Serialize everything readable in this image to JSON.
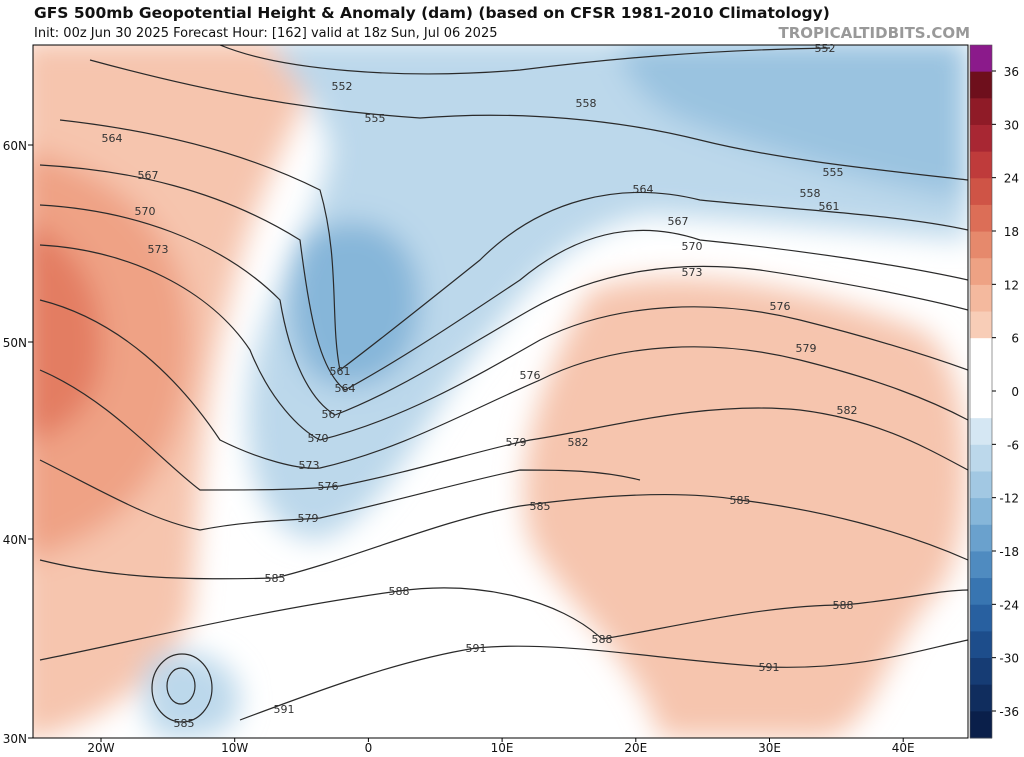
{
  "header": {
    "title": "GFS 500mb Geopotential Height & Anomaly (dam) (based on CFSR 1981-2010 Climatology)",
    "subtitle": "Init: 00z Jun 30 2025   Forecast Hour: [162]   valid at 18z Sun, Jul 06 2025",
    "site": "TROPICALTIDBITS.COM"
  },
  "map": {
    "lat_labels": [
      "60N",
      "50N",
      "40N",
      "30N"
    ],
    "lon_labels": [
      "20W",
      "10W",
      "0",
      "10E",
      "20E",
      "30E",
      "40E"
    ],
    "contour_labels": [
      "552",
      "555",
      "558",
      "564",
      "567",
      "570",
      "573",
      "564",
      "567",
      "570",
      "573",
      "555",
      "558",
      "561",
      "576",
      "579",
      "582",
      "561",
      "564",
      "567",
      "570",
      "573",
      "576",
      "579",
      "576",
      "579",
      "582",
      "585",
      "585",
      "585",
      "588",
      "588",
      "588",
      "591",
      "591",
      "591",
      "585",
      "552"
    ]
  },
  "colorbar": {
    "ticks": [
      36,
      30,
      24,
      18,
      12,
      6,
      0,
      -6,
      -12,
      -18,
      -24,
      -30,
      -36
    ],
    "colors": [
      "#8b1a8b",
      "#6e0f1c",
      "#8f1b27",
      "#a82733",
      "#bf3b3b",
      "#cf5446",
      "#dc6e57",
      "#e6896c",
      "#eea284",
      "#f4b99e",
      "#f8cdb7",
      "#ffffff",
      "#ffffff",
      "#ffffff",
      "#d5e7f3",
      "#bcd8eb",
      "#a2c8e3",
      "#86b6d9",
      "#6aa1cd",
      "#4f8bc0",
      "#3875b1",
      "#2860a0",
      "#1d4d8b",
      "#163c74",
      "#102d5e",
      "#0a1f4a"
    ]
  }
}
